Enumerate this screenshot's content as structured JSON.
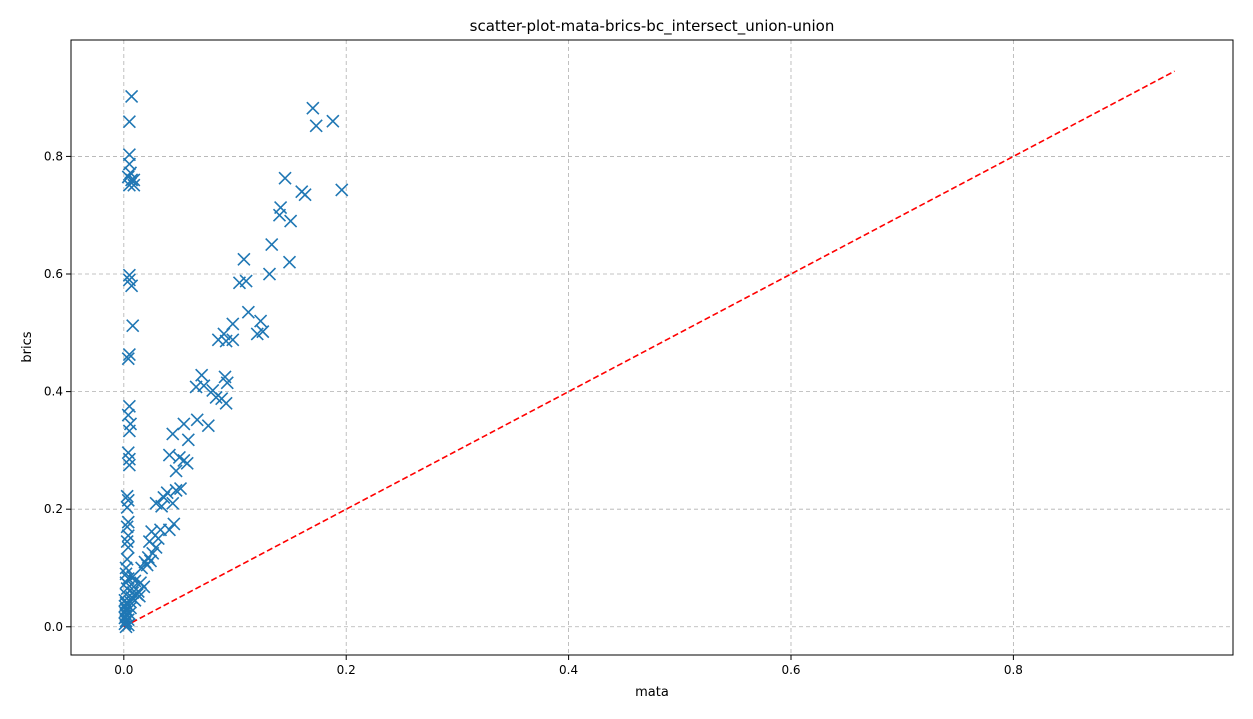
{
  "chart_data": {
    "type": "scatter",
    "title": "scatter-plot-mata-brics-bc_intersect_union-union",
    "xlabel": "mata",
    "ylabel": "brics",
    "xlim": [
      -0.0475,
      0.9975
    ],
    "ylim": [
      -0.048,
      0.998
    ],
    "xticks": [
      0.0,
      0.2,
      0.4,
      0.6,
      0.8
    ],
    "yticks": [
      0.0,
      0.2,
      0.4,
      0.6,
      0.8
    ],
    "xtick_labels": [
      "0.0",
      "0.2",
      "0.4",
      "0.6",
      "0.8"
    ],
    "ytick_labels": [
      "0.0",
      "0.2",
      "0.4",
      "0.6",
      "0.8"
    ],
    "grid": true,
    "marker": "x",
    "marker_color": "#1f77b4",
    "reference_line": {
      "style": "dashed",
      "color": "#ff0000",
      "x": [
        0,
        0.945
      ],
      "y": [
        0,
        0.945
      ]
    },
    "series": [
      {
        "points": [
          [
            0.007,
            0.902
          ],
          [
            0.005,
            0.859
          ],
          [
            0.005,
            0.803
          ],
          [
            0.005,
            0.787
          ],
          [
            0.006,
            0.772
          ],
          [
            0.004,
            0.765
          ],
          [
            0.007,
            0.76
          ],
          [
            0.009,
            0.76
          ],
          [
            0.005,
            0.751
          ],
          [
            0.009,
            0.751
          ],
          [
            0.005,
            0.598
          ],
          [
            0.005,
            0.59
          ],
          [
            0.007,
            0.58
          ],
          [
            0.008,
            0.512
          ],
          [
            0.005,
            0.463
          ],
          [
            0.004,
            0.456
          ],
          [
            0.005,
            0.375
          ],
          [
            0.004,
            0.36
          ],
          [
            0.006,
            0.345
          ],
          [
            0.005,
            0.333
          ],
          [
            0.004,
            0.296
          ],
          [
            0.005,
            0.285
          ],
          [
            0.005,
            0.275
          ],
          [
            0.003,
            0.222
          ],
          [
            0.004,
            0.215
          ],
          [
            0.003,
            0.203
          ],
          [
            0.004,
            0.178
          ],
          [
            0.003,
            0.17
          ],
          [
            0.004,
            0.155
          ],
          [
            0.003,
            0.145
          ],
          [
            0.004,
            0.135
          ],
          [
            0.003,
            0.115
          ],
          [
            0.002,
            0.1
          ],
          [
            0.002,
            0.09
          ],
          [
            0.004,
            0.082
          ],
          [
            0.002,
            0.075
          ],
          [
            0.003,
            0.065
          ],
          [
            0.002,
            0.055
          ],
          [
            0.001,
            0.045
          ],
          [
            0.002,
            0.04
          ],
          [
            0.001,
            0.035
          ],
          [
            0.002,
            0.03
          ],
          [
            0.001,
            0.025
          ],
          [
            0.002,
            0.02
          ],
          [
            0.001,
            0.015
          ],
          [
            0.002,
            0.01
          ],
          [
            0.001,
            0.005
          ],
          [
            0.002,
            0.0
          ],
          [
            0.004,
            0.003
          ],
          [
            0.004,
            0.012
          ],
          [
            0.005,
            0.022
          ],
          [
            0.006,
            0.032
          ],
          [
            0.006,
            0.042
          ],
          [
            0.007,
            0.05
          ],
          [
            0.008,
            0.058
          ],
          [
            0.009,
            0.068
          ],
          [
            0.01,
            0.078
          ],
          [
            0.008,
            0.085
          ],
          [
            0.01,
            0.045
          ],
          [
            0.012,
            0.055
          ],
          [
            0.013,
            0.06
          ],
          [
            0.014,
            0.052
          ],
          [
            0.015,
            0.075
          ],
          [
            0.018,
            0.068
          ],
          [
            0.016,
            0.1
          ],
          [
            0.019,
            0.11
          ],
          [
            0.021,
            0.105
          ],
          [
            0.022,
            0.118
          ],
          [
            0.024,
            0.112
          ],
          [
            0.026,
            0.125
          ],
          [
            0.023,
            0.145
          ],
          [
            0.025,
            0.162
          ],
          [
            0.029,
            0.135
          ],
          [
            0.031,
            0.15
          ],
          [
            0.033,
            0.165
          ],
          [
            0.029,
            0.21
          ],
          [
            0.034,
            0.205
          ],
          [
            0.036,
            0.22
          ],
          [
            0.039,
            0.228
          ],
          [
            0.041,
            0.165
          ],
          [
            0.045,
            0.175
          ],
          [
            0.044,
            0.21
          ],
          [
            0.047,
            0.232
          ],
          [
            0.051,
            0.235
          ],
          [
            0.041,
            0.292
          ],
          [
            0.047,
            0.265
          ],
          [
            0.05,
            0.288
          ],
          [
            0.054,
            0.283
          ],
          [
            0.057,
            0.278
          ],
          [
            0.044,
            0.328
          ],
          [
            0.054,
            0.345
          ],
          [
            0.058,
            0.318
          ],
          [
            0.066,
            0.352
          ],
          [
            0.076,
            0.342
          ],
          [
            0.065,
            0.408
          ],
          [
            0.07,
            0.428
          ],
          [
            0.072,
            0.41
          ],
          [
            0.08,
            0.402
          ],
          [
            0.083,
            0.39
          ],
          [
            0.088,
            0.388
          ],
          [
            0.092,
            0.38
          ],
          [
            0.091,
            0.425
          ],
          [
            0.093,
            0.415
          ],
          [
            0.085,
            0.488
          ],
          [
            0.09,
            0.498
          ],
          [
            0.092,
            0.486
          ],
          [
            0.098,
            0.488
          ],
          [
            0.098,
            0.515
          ],
          [
            0.104,
            0.585
          ],
          [
            0.11,
            0.588
          ],
          [
            0.108,
            0.625
          ],
          [
            0.112,
            0.535
          ],
          [
            0.12,
            0.498
          ],
          [
            0.123,
            0.52
          ],
          [
            0.125,
            0.502
          ],
          [
            0.131,
            0.6
          ],
          [
            0.133,
            0.65
          ],
          [
            0.14,
            0.7
          ],
          [
            0.141,
            0.713
          ],
          [
            0.15,
            0.69
          ],
          [
            0.145,
            0.763
          ],
          [
            0.149,
            0.62
          ],
          [
            0.16,
            0.74
          ],
          [
            0.163,
            0.735
          ],
          [
            0.17,
            0.882
          ],
          [
            0.173,
            0.852
          ],
          [
            0.188,
            0.86
          ],
          [
            0.196,
            0.743
          ]
        ]
      }
    ]
  }
}
